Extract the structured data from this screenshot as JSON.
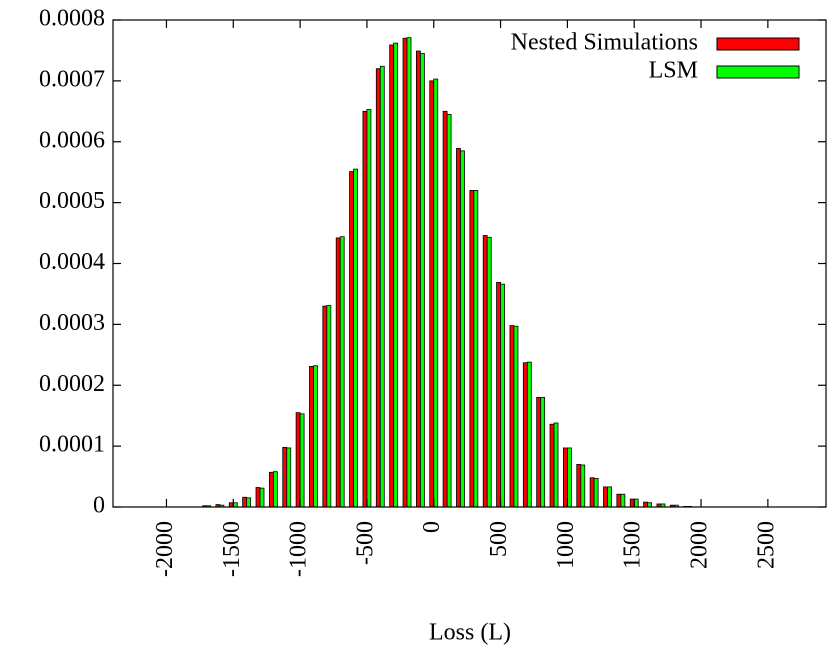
{
  "chart_data": {
    "type": "bar",
    "x_label": "Loss (L)",
    "x": [
      -1700,
      -1600,
      -1500,
      -1400,
      -1300,
      -1200,
      -1100,
      -1000,
      -900,
      -800,
      -700,
      -600,
      -500,
      -400,
      -300,
      -200,
      -100,
      0,
      100,
      200,
      300,
      400,
      500,
      600,
      700,
      800,
      900,
      1000,
      1100,
      1200,
      1300,
      1400,
      1500,
      1600,
      1700,
      1800,
      1900
    ],
    "series": [
      {
        "name": "Nested Simulations",
        "color": "#ff0000",
        "values": [
          2e-06,
          4e-06,
          7e-06,
          1.6e-05,
          3.2e-05,
          5.7e-05,
          9.8e-05,
          0.000155,
          0.000231,
          0.00033,
          0.000442,
          0.000551,
          0.00065,
          0.00072,
          0.000759,
          0.00077,
          0.000749,
          0.0007,
          0.00065,
          0.000589,
          0.00052,
          0.000446,
          0.000369,
          0.000298,
          0.000237,
          0.00018,
          0.000136,
          9.7e-05,
          7e-05,
          4.8e-05,
          3.3e-05,
          2.1e-05,
          1.3e-05,
          8e-06,
          5e-06,
          3e-06,
          1e-06
        ]
      },
      {
        "name": "LSM",
        "color": "#00ff00",
        "values": [
          2e-06,
          3e-06,
          7e-06,
          1.5e-05,
          3.1e-05,
          5.8e-05,
          9.7e-05,
          0.000153,
          0.000232,
          0.000331,
          0.000444,
          0.000555,
          0.000653,
          0.000724,
          0.000762,
          0.000771,
          0.000745,
          0.000703,
          0.000645,
          0.000585,
          0.00052,
          0.000443,
          0.000366,
          0.000297,
          0.000238,
          0.00018,
          0.000138,
          9.7e-05,
          6.9e-05,
          4.7e-05,
          3.3e-05,
          2.1e-05,
          1.3e-05,
          7e-06,
          5e-06,
          3e-06,
          1e-06
        ]
      }
    ],
    "xlim": [
      -2400,
      2935
    ],
    "xticks": [
      -2000,
      -1500,
      -1000,
      -500,
      0,
      500,
      1000,
      1500,
      2000,
      2500
    ],
    "ylim": [
      0,
      0.0008
    ],
    "yticks": [
      0,
      0.0001,
      0.0002,
      0.0003,
      0.0004,
      0.0005,
      0.0006,
      0.0007,
      0.0008
    ],
    "legend": "top-right"
  }
}
